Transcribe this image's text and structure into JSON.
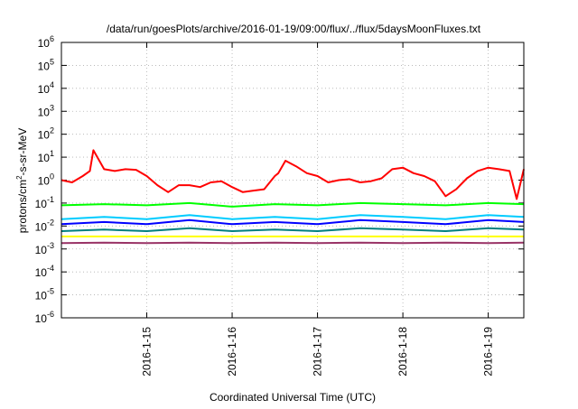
{
  "chart_data": {
    "type": "line",
    "title": "/data/run/goesPlots/archive/2016-01-19/09:00/flux/../flux/5daysMoonFluxes.txt",
    "xlabel": "Coordinated Universal Time (UTC)",
    "ylabel": {
      "prefix": "protons/cm",
      "sup": "2",
      "suffix": "-s-sr-MeV"
    },
    "y_scale": "log",
    "ylim": [
      1e-06,
      1000000.0
    ],
    "y_ticks": [
      {
        "value": 1e-06,
        "base": "10",
        "exp": "-6"
      },
      {
        "value": 1e-05,
        "base": "10",
        "exp": "-5"
      },
      {
        "value": 0.0001,
        "base": "10",
        "exp": "-4"
      },
      {
        "value": 0.001,
        "base": "10",
        "exp": "-3"
      },
      {
        "value": 0.01,
        "base": "10",
        "exp": "-2"
      },
      {
        "value": 0.1,
        "base": "10",
        "exp": "-1"
      },
      {
        "value": 1,
        "base": "10",
        "exp": "0"
      },
      {
        "value": 10,
        "base": "10",
        "exp": "1"
      },
      {
        "value": 100,
        "base": "10",
        "exp": "2"
      },
      {
        "value": 1000,
        "base": "10",
        "exp": "3"
      },
      {
        "value": 10000,
        "base": "10",
        "exp": "4"
      },
      {
        "value": 100000,
        "base": "10",
        "exp": "5"
      },
      {
        "value": 1000000,
        "base": "10",
        "exp": "6"
      }
    ],
    "xlim": [
      "2016-01-14T00:00",
      "2016-01-19T10:00"
    ],
    "x_ticks": [
      {
        "value": "2016-01-15T00:00",
        "label": "2016-1-15"
      },
      {
        "value": "2016-01-16T00:00",
        "label": "2016-1-16"
      },
      {
        "value": "2016-01-17T00:00",
        "label": "2016-1-17"
      },
      {
        "value": "2016-01-18T00:00",
        "label": "2016-1-18"
      },
      {
        "value": "2016-01-19T00:00",
        "label": "2016-1-19"
      }
    ],
    "grid": true,
    "series": [
      {
        "color": "#ff0000",
        "x": [
          "2016-01-14T00:00",
          "2016-01-14T03:00",
          "2016-01-14T06:00",
          "2016-01-14T08:00",
          "2016-01-14T09:00",
          "2016-01-14T12:00",
          "2016-01-14T15:00",
          "2016-01-14T18:00",
          "2016-01-14T21:00",
          "2016-01-15T00:00",
          "2016-01-15T03:00",
          "2016-01-15T06:00",
          "2016-01-15T09:00",
          "2016-01-15T12:00",
          "2016-01-15T15:00",
          "2016-01-15T18:00",
          "2016-01-15T21:00",
          "2016-01-16T00:00",
          "2016-01-16T03:00",
          "2016-01-16T06:00",
          "2016-01-16T09:00",
          "2016-01-16T12:00",
          "2016-01-16T13:00",
          "2016-01-16T15:00",
          "2016-01-16T18:00",
          "2016-01-16T21:00",
          "2016-01-17T00:00",
          "2016-01-17T03:00",
          "2016-01-17T06:00",
          "2016-01-17T09:00",
          "2016-01-17T12:00",
          "2016-01-17T15:00",
          "2016-01-17T18:00",
          "2016-01-17T21:00",
          "2016-01-18T00:00",
          "2016-01-18T03:00",
          "2016-01-18T06:00",
          "2016-01-18T09:00",
          "2016-01-18T12:00",
          "2016-01-18T15:00",
          "2016-01-18T18:00",
          "2016-01-18T21:00",
          "2016-01-19T00:00",
          "2016-01-19T03:00",
          "2016-01-19T06:00",
          "2016-01-19T08:00",
          "2016-01-19T10:00"
        ],
        "y": [
          1.0,
          0.8,
          1.5,
          2.5,
          20,
          3,
          2.5,
          3,
          2.8,
          1.5,
          0.6,
          0.3,
          0.6,
          0.6,
          0.5,
          0.8,
          0.9,
          0.5,
          0.3,
          0.35,
          0.4,
          1.5,
          2,
          7,
          4,
          2,
          1.5,
          0.8,
          1.0,
          1.1,
          0.8,
          0.9,
          1.2,
          3,
          3.5,
          2,
          1.5,
          0.9,
          0.2,
          0.4,
          1.2,
          2.5,
          3.5,
          3,
          2.5,
          0.15,
          3.0
        ]
      },
      {
        "color": "#00ff00",
        "x": [
          "2016-01-14T00:00",
          "2016-01-14T12:00",
          "2016-01-15T00:00",
          "2016-01-15T12:00",
          "2016-01-16T00:00",
          "2016-01-16T12:00",
          "2016-01-17T00:00",
          "2016-01-17T12:00",
          "2016-01-18T00:00",
          "2016-01-18T12:00",
          "2016-01-19T00:00",
          "2016-01-19T10:00"
        ],
        "y": [
          0.08,
          0.09,
          0.08,
          0.1,
          0.07,
          0.09,
          0.08,
          0.1,
          0.09,
          0.08,
          0.1,
          0.09
        ]
      },
      {
        "color": "#00ccff",
        "x": [
          "2016-01-14T00:00",
          "2016-01-14T12:00",
          "2016-01-15T00:00",
          "2016-01-15T12:00",
          "2016-01-16T00:00",
          "2016-01-16T12:00",
          "2016-01-17T00:00",
          "2016-01-17T12:00",
          "2016-01-18T00:00",
          "2016-01-18T12:00",
          "2016-01-19T00:00",
          "2016-01-19T10:00"
        ],
        "y": [
          0.02,
          0.025,
          0.02,
          0.03,
          0.02,
          0.025,
          0.02,
          0.03,
          0.025,
          0.02,
          0.03,
          0.025
        ]
      },
      {
        "color": "#0000ff",
        "x": [
          "2016-01-14T00:00",
          "2016-01-14T12:00",
          "2016-01-15T00:00",
          "2016-01-15T12:00",
          "2016-01-16T00:00",
          "2016-01-16T12:00",
          "2016-01-17T00:00",
          "2016-01-17T12:00",
          "2016-01-18T00:00",
          "2016-01-18T12:00",
          "2016-01-19T00:00",
          "2016-01-19T10:00"
        ],
        "y": [
          0.012,
          0.015,
          0.012,
          0.018,
          0.012,
          0.015,
          0.012,
          0.018,
          0.015,
          0.012,
          0.018,
          0.015
        ]
      },
      {
        "color": "#008080",
        "x": [
          "2016-01-14T00:00",
          "2016-01-14T12:00",
          "2016-01-15T00:00",
          "2016-01-15T12:00",
          "2016-01-16T00:00",
          "2016-01-16T12:00",
          "2016-01-17T00:00",
          "2016-01-17T12:00",
          "2016-01-18T00:00",
          "2016-01-18T12:00",
          "2016-01-19T00:00",
          "2016-01-19T10:00"
        ],
        "y": [
          0.006,
          0.007,
          0.006,
          0.008,
          0.006,
          0.007,
          0.006,
          0.008,
          0.007,
          0.006,
          0.008,
          0.007
        ]
      },
      {
        "color": "#ffff00",
        "x": [
          "2016-01-14T00:00",
          "2016-01-14T12:00",
          "2016-01-15T00:00",
          "2016-01-15T12:00",
          "2016-01-16T00:00",
          "2016-01-16T12:00",
          "2016-01-17T00:00",
          "2016-01-17T12:00",
          "2016-01-18T00:00",
          "2016-01-18T12:00",
          "2016-01-19T00:00",
          "2016-01-19T10:00"
        ],
        "y": [
          0.0035,
          0.0035,
          0.0035,
          0.0035,
          0.0035,
          0.0035,
          0.0035,
          0.0035,
          0.0035,
          0.0035,
          0.0035,
          0.0035
        ]
      },
      {
        "color": "#993366",
        "x": [
          "2016-01-14T00:00",
          "2016-01-14T12:00",
          "2016-01-15T00:00",
          "2016-01-15T12:00",
          "2016-01-16T00:00",
          "2016-01-16T12:00",
          "2016-01-17T00:00",
          "2016-01-17T12:00",
          "2016-01-18T00:00",
          "2016-01-18T12:00",
          "2016-01-19T00:00",
          "2016-01-19T10:00"
        ],
        "y": [
          0.0018,
          0.0019,
          0.0018,
          0.0019,
          0.0018,
          0.0019,
          0.0018,
          0.0019,
          0.0018,
          0.0019,
          0.0018,
          0.0019
        ]
      }
    ]
  }
}
